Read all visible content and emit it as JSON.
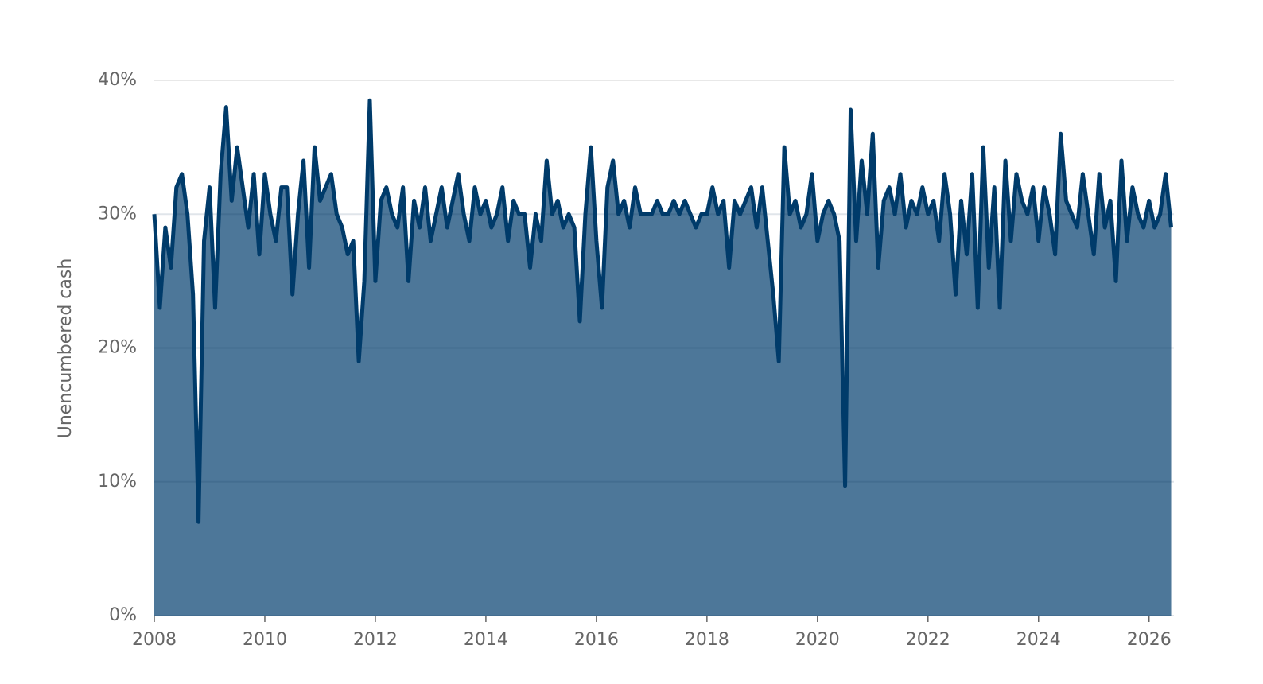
{
  "chart_data": {
    "type": "area",
    "y_label": "Unencumbered cash",
    "x": [
      2008,
      2008.1,
      2008.2,
      2008.3,
      2008.4,
      2008.5,
      2008.6,
      2008.7,
      2008.8,
      2008.9,
      2009,
      2009.1,
      2009.2,
      2009.3,
      2009.4,
      2009.5,
      2009.6,
      2009.7,
      2009.8,
      2009.9,
      2010,
      2010.1,
      2010.2,
      2010.3,
      2010.4,
      2010.5,
      2010.6,
      2010.7,
      2010.8,
      2010.9,
      2011,
      2011.1,
      2011.2,
      2011.3,
      2011.4,
      2011.5,
      2011.6,
      2011.7,
      2011.8,
      2011.9,
      2012,
      2012.1,
      2012.2,
      2012.3,
      2012.4,
      2012.5,
      2012.6,
      2012.7,
      2012.8,
      2012.9,
      2013,
      2013.1,
      2013.2,
      2013.3,
      2013.4,
      2013.5,
      2013.6,
      2013.7,
      2013.8,
      2013.9,
      2014,
      2014.1,
      2014.2,
      2014.3,
      2014.4,
      2014.5,
      2014.6,
      2014.7,
      2014.8,
      2014.9,
      2015,
      2015.1,
      2015.2,
      2015.3,
      2015.4,
      2015.5,
      2015.6,
      2015.7,
      2015.8,
      2015.9,
      2016,
      2016.1,
      2016.2,
      2016.3,
      2016.4,
      2016.5,
      2016.6,
      2016.7,
      2016.8,
      2016.9,
      2017,
      2017.1,
      2017.2,
      2017.3,
      2017.4,
      2017.5,
      2017.6,
      2017.7,
      2017.8,
      2017.9,
      2018,
      2018.1,
      2018.2,
      2018.3,
      2018.4,
      2018.5,
      2018.6,
      2018.7,
      2018.8,
      2018.9,
      2019,
      2019.1,
      2019.2,
      2019.3,
      2019.4,
      2019.5,
      2019.6,
      2019.7,
      2019.8,
      2019.9,
      2020,
      2020.1,
      2020.2,
      2020.3,
      2020.4,
      2020.5,
      2020.6,
      2020.7,
      2020.8,
      2020.9,
      2021,
      2021.1,
      2021.2,
      2021.3,
      2021.4,
      2021.5,
      2021.6,
      2021.7,
      2021.8,
      2021.9,
      2022,
      2022.1,
      2022.2,
      2022.3,
      2022.4,
      2022.5,
      2022.6,
      2022.7,
      2022.8,
      2022.9,
      2023,
      2023.1,
      2023.2,
      2023.3,
      2023.4,
      2023.5,
      2023.6,
      2023.7,
      2023.8,
      2023.9,
      2024,
      2024.1,
      2024.2,
      2024.3,
      2024.4,
      2024.5,
      2024.6,
      2024.7,
      2024.8,
      2024.9,
      2025,
      2025.1,
      2025.2,
      2025.3,
      2025.4,
      2025.5,
      2025.6,
      2025.7,
      2025.8,
      2025.9,
      2026,
      2026.1,
      2026.2,
      2026.3,
      2026.4
    ],
    "values": [
      30,
      23,
      29,
      26,
      32,
      33,
      30,
      24,
      7,
      28,
      32,
      23,
      33,
      38,
      31,
      35,
      32,
      29,
      33,
      27,
      33,
      30,
      28,
      32,
      32,
      24,
      30,
      34,
      26,
      35,
      31,
      32,
      33,
      30,
      29,
      27,
      28,
      19,
      25,
      38.5,
      25,
      31,
      32,
      30,
      29,
      32,
      25,
      31,
      29,
      32,
      28,
      30,
      32,
      29,
      31,
      33,
      30,
      28,
      32,
      30,
      31,
      29,
      30,
      32,
      28,
      31,
      30,
      30,
      26,
      30,
      28,
      34,
      30,
      31,
      29,
      30,
      29,
      22,
      30,
      35,
      28,
      23,
      32,
      34,
      30,
      31,
      29,
      32,
      30,
      30,
      30,
      31,
      30,
      30,
      31,
      30,
      31,
      30,
      29,
      30,
      30,
      32,
      30,
      31,
      26,
      31,
      30,
      31,
      32,
      29,
      32,
      28,
      24,
      19,
      35,
      30,
      31,
      29,
      30,
      33,
      28,
      30,
      31,
      30,
      28,
      9.7,
      37.8,
      28,
      34,
      30,
      36,
      26,
      31,
      32,
      30,
      33,
      29,
      31,
      30,
      32,
      30,
      31,
      28,
      33,
      30,
      24,
      31,
      27,
      33,
      23,
      35,
      26,
      32,
      23,
      34,
      28,
      33,
      31,
      30,
      32,
      28,
      32,
      30,
      27,
      36,
      31,
      30,
      29,
      33,
      30,
      27,
      33,
      29,
      31,
      25,
      34,
      28,
      32,
      30,
      29,
      31,
      29,
      30,
      33,
      29
    ],
    "color": "#003b6a",
    "fill_color": "#4d7799",
    "xlim": [
      2008,
      2026.45
    ],
    "xticks": [
      2008,
      2010,
      2012,
      2014,
      2016,
      2018,
      2020,
      2022,
      2024,
      2026
    ],
    "ylim": [
      0,
      40
    ],
    "yticks": [
      {
        "value": 0,
        "label": "0%"
      },
      {
        "value": 10,
        "label": "10%"
      },
      {
        "value": 20,
        "label": "20%"
      },
      {
        "value": 30,
        "label": "30%"
      },
      {
        "value": 40,
        "label": "40%"
      }
    ],
    "grid": true
  }
}
